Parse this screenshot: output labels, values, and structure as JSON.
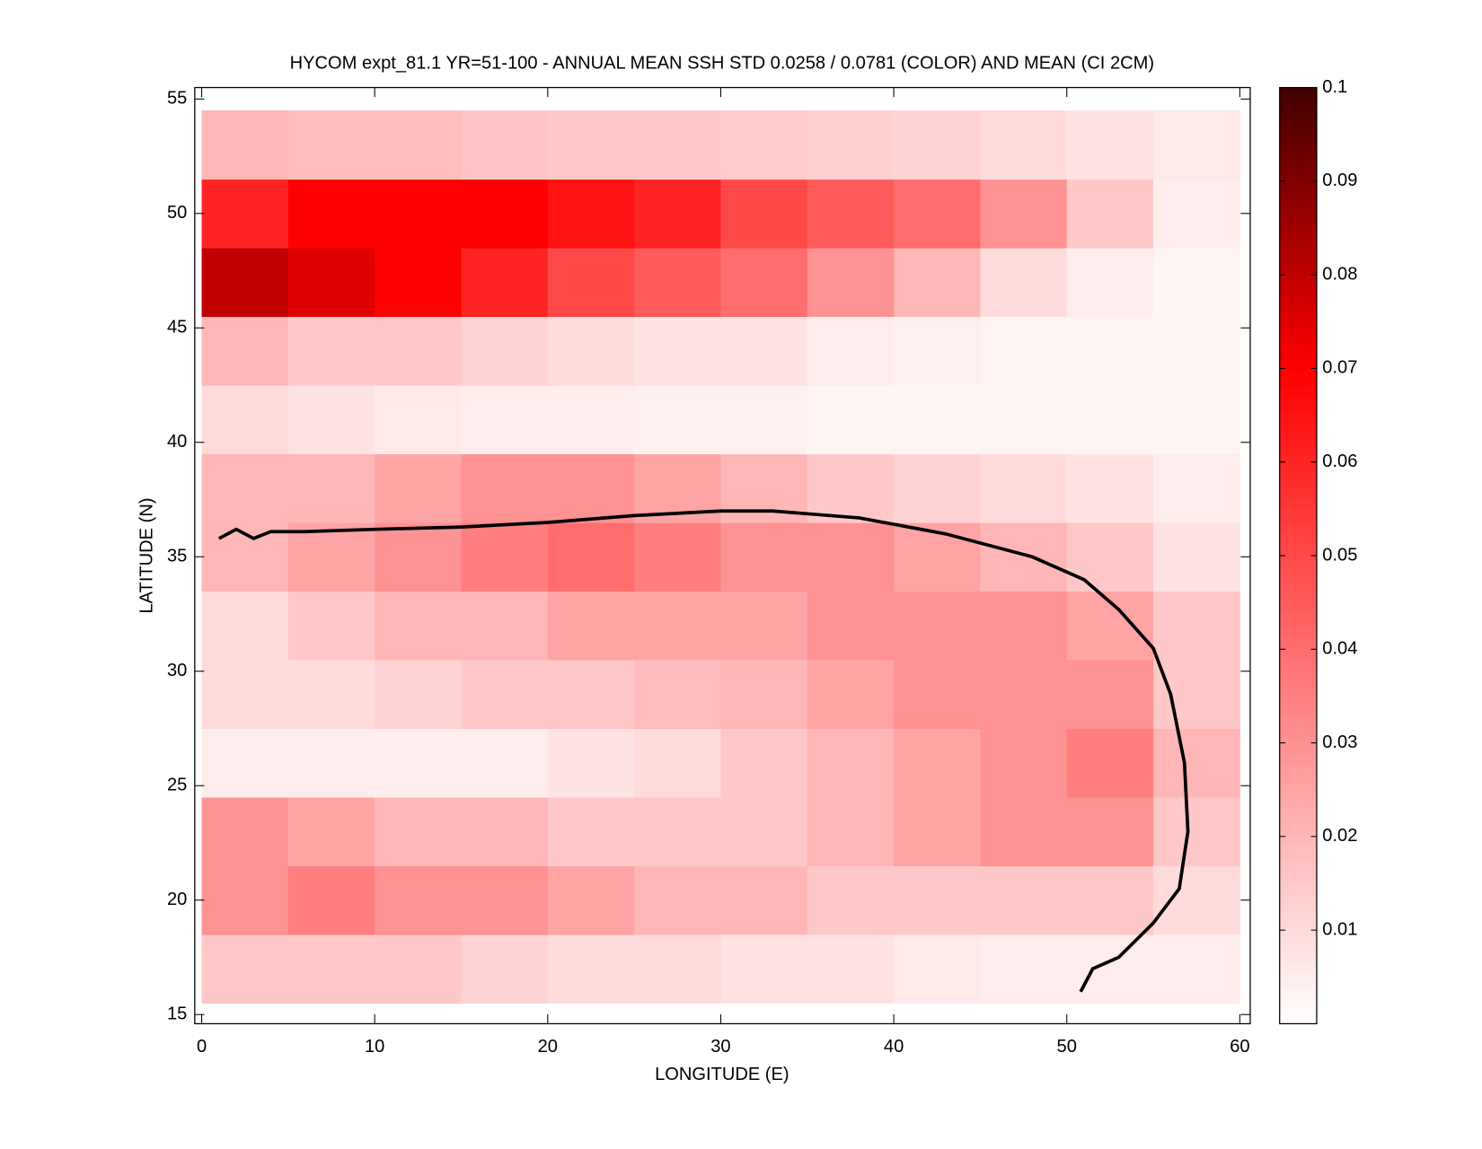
{
  "chart_data": {
    "type": "heatmap",
    "title": "HYCOM expt_81.1 YR=51-100 - ANNUAL MEAN SSH STD 0.0258 / 0.0781 (COLOR) AND MEAN (CI 2CM)",
    "xlabel": "LONGITUDE (E)",
    "ylabel": "LATITUDE (N)",
    "x": [
      2.5,
      7.5,
      12.5,
      17.5,
      22.5,
      27.5,
      32.5,
      37.5,
      42.5,
      47.5,
      52.5,
      57.5
    ],
    "y": [
      17,
      20,
      23,
      26,
      29,
      32,
      35,
      38,
      41,
      44,
      47,
      50,
      53
    ],
    "values": [
      [
        0.015,
        0.015,
        0.015,
        0.012,
        0.01,
        0.01,
        0.008,
        0.008,
        0.006,
        0.005,
        0.005,
        0.005
      ],
      [
        0.03,
        0.035,
        0.03,
        0.03,
        0.025,
        0.02,
        0.02,
        0.015,
        0.015,
        0.015,
        0.015,
        0.01
      ],
      [
        0.03,
        0.025,
        0.02,
        0.02,
        0.015,
        0.015,
        0.015,
        0.02,
        0.025,
        0.03,
        0.03,
        0.015
      ],
      [
        0.005,
        0.005,
        0.005,
        0.005,
        0.008,
        0.01,
        0.015,
        0.02,
        0.025,
        0.03,
        0.035,
        0.02
      ],
      [
        0.01,
        0.01,
        0.012,
        0.015,
        0.015,
        0.018,
        0.02,
        0.025,
        0.03,
        0.03,
        0.03,
        0.015
      ],
      [
        0.01,
        0.015,
        0.02,
        0.02,
        0.025,
        0.025,
        0.025,
        0.03,
        0.03,
        0.03,
        0.025,
        0.015
      ],
      [
        0.02,
        0.025,
        0.03,
        0.035,
        0.04,
        0.035,
        0.03,
        0.03,
        0.025,
        0.02,
        0.015,
        0.008
      ],
      [
        0.02,
        0.02,
        0.025,
        0.03,
        0.03,
        0.025,
        0.02,
        0.015,
        0.012,
        0.01,
        0.008,
        0.005
      ],
      [
        0.01,
        0.008,
        0.006,
        0.005,
        0.005,
        0.004,
        0.004,
        0.003,
        0.003,
        0.003,
        0.003,
        0.003
      ],
      [
        0.02,
        0.015,
        0.015,
        0.012,
        0.01,
        0.008,
        0.008,
        0.005,
        0.004,
        0.003,
        0.003,
        0.003
      ],
      [
        0.08,
        0.075,
        0.07,
        0.06,
        0.05,
        0.045,
        0.04,
        0.03,
        0.02,
        0.01,
        0.005,
        0.003
      ],
      [
        0.06,
        0.07,
        0.07,
        0.07,
        0.065,
        0.06,
        0.05,
        0.045,
        0.04,
        0.03,
        0.015,
        0.005
      ],
      [
        0.02,
        0.018,
        0.018,
        0.016,
        0.015,
        0.015,
        0.014,
        0.013,
        0.012,
        0.01,
        0.008,
        0.006
      ]
    ],
    "xlim": [
      -0.4,
      60.6
    ],
    "ylim": [
      14.6,
      55.5
    ],
    "xticks": [
      0,
      10,
      20,
      30,
      40,
      50,
      60
    ],
    "yticks": [
      15,
      20,
      25,
      30,
      35,
      40,
      45,
      50,
      55
    ],
    "colormap": [
      "#ffffff",
      "#ff0000",
      "#400000"
    ],
    "clim": [
      0,
      0.1
    ],
    "cticks": [
      0.01,
      0.02,
      0.03,
      0.04,
      0.05,
      0.06,
      0.07,
      0.08,
      0.09,
      0.1
    ],
    "contour": {
      "color": "#000000",
      "x": [
        1,
        2,
        3,
        4,
        6,
        10,
        15,
        20,
        25,
        30,
        33,
        38,
        43,
        48,
        51,
        53,
        55,
        56,
        56.8,
        57,
        56.5,
        55,
        53,
        51.5,
        50.8
      ],
      "y": [
        35.8,
        36.2,
        35.8,
        36.1,
        36.1,
        36.2,
        36.3,
        36.5,
        36.8,
        37,
        37,
        36.7,
        36,
        35,
        34,
        32.7,
        31,
        29,
        26,
        23,
        20.5,
        19,
        17.5,
        17,
        16
      ]
    }
  }
}
